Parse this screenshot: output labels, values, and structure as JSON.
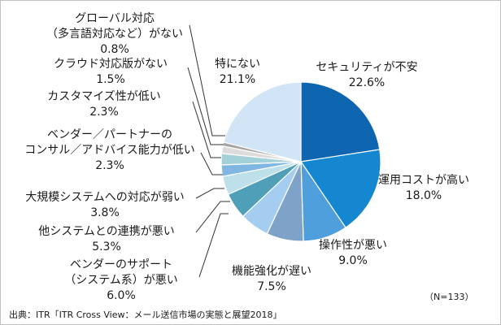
{
  "chart_data": {
    "type": "pie",
    "title": "",
    "slices": [
      {
        "name": "セキュリティが不安",
        "label_lines": [
          "セキュリティが不安"
        ],
        "value": 22.6,
        "value_text": "22.6%",
        "color": "#0e65b0"
      },
      {
        "name": "運用コストが高い",
        "label_lines": [
          "運用コストが高い"
        ],
        "value": 18.0,
        "value_text": "18.0%",
        "color": "#1487d0"
      },
      {
        "name": "操作性が悪い",
        "label_lines": [
          "操作性が悪い"
        ],
        "value": 9.0,
        "value_text": "9.0%",
        "color": "#4e9fdc"
      },
      {
        "name": "機能強化が遅い",
        "label_lines": [
          "機能強化が遅い"
        ],
        "value": 7.5,
        "value_text": "7.5%",
        "color": "#7fa3c8"
      },
      {
        "name": "ベンダーのサポート（システム系）が悪い",
        "label_lines": [
          "ベンダーのサポート",
          "（システム系）が悪い"
        ],
        "value": 6.0,
        "value_text": "6.0%",
        "color": "#a5cdef"
      },
      {
        "name": "他システムとの連携が悪い",
        "label_lines": [
          "他システムとの連携が悪い"
        ],
        "value": 5.3,
        "value_text": "5.3%",
        "color": "#4f9fb8"
      },
      {
        "name": "大規模システムへの対応が弱い",
        "label_lines": [
          "大規模システムへの対応が弱い"
        ],
        "value": 3.8,
        "value_text": "3.8%",
        "color": "#bde0ea"
      },
      {
        "name": "ベンダー／パートナーのコンサル／アドバイス能力が低い",
        "label_lines": [
          "ベンダー／パートナーの",
          "コンサル／アドバイス能力が低い"
        ],
        "value": 2.3,
        "value_text": "2.3%",
        "color": "#7fb6e2"
      },
      {
        "name": "カスタマイズ性が低い",
        "label_lines": [
          "カスタマイズ性が低い"
        ],
        "value": 2.3,
        "value_text": "2.3%",
        "color": "#a4d0d9"
      },
      {
        "name": "クラウド対応版がない",
        "label_lines": [
          "クラウド対応版がない"
        ],
        "value": 1.5,
        "value_text": "1.5%",
        "color": "#dcdcdc"
      },
      {
        "name": "グローバル対応（多言語対応など）がない",
        "label_lines": [
          "グローバル対応",
          "（多言語対応など）がない"
        ],
        "value": 0.8,
        "value_text": "0.8%",
        "color": "#a6a6a6"
      },
      {
        "name": "特にない",
        "label_lines": [
          "特にない"
        ],
        "value": 21.1,
        "value_text": "21.1%",
        "color": "#d2e5f6"
      }
    ],
    "start_angle_deg": 0,
    "direction": "clockwise",
    "sample_size": "（N=133）"
  },
  "footer": {
    "source": "出典：ITR「ITR Cross View：メール送信市場の実態と展望2018」"
  }
}
